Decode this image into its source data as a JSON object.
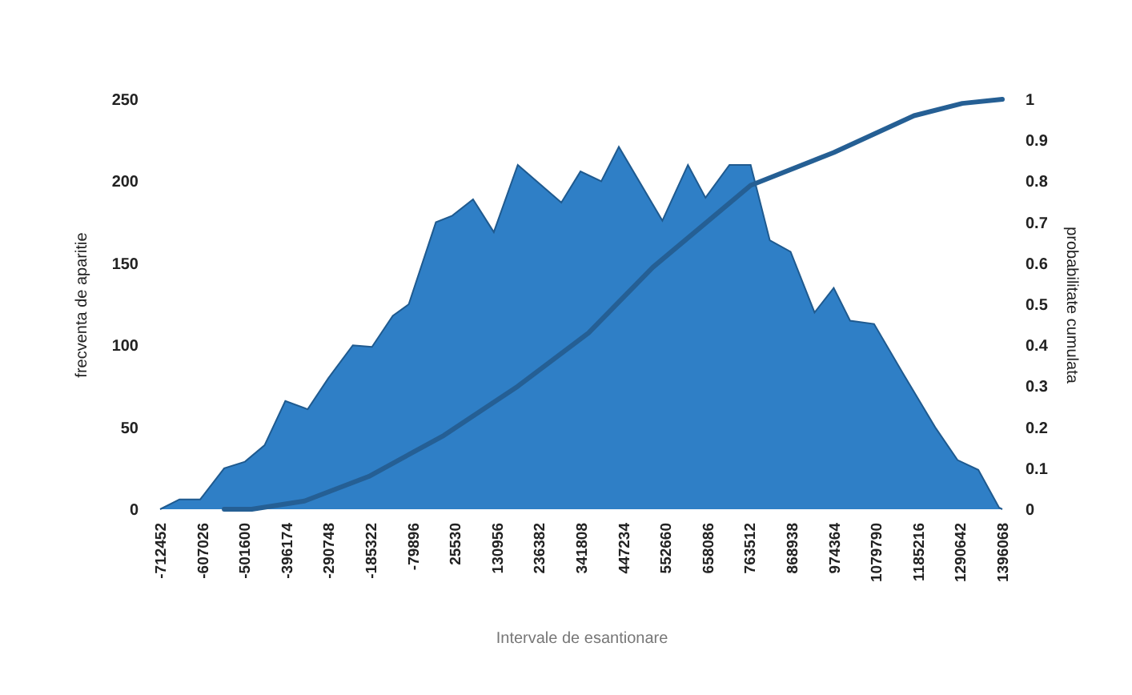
{
  "chart_data": {
    "type": "area",
    "xlabel": "Intervale de esantionare",
    "ylabel": "frecventa de aparitie",
    "y2label": "probabilitate cumulata",
    "xlim": [
      -712452,
      1396068
    ],
    "xticks": [
      -712452,
      -607026,
      -501600,
      -396174,
      -290748,
      -185322,
      -79896,
      25530,
      130956,
      236382,
      341808,
      447234,
      552660,
      658086,
      763512,
      868938,
      974364,
      1079790,
      1185216,
      1290642,
      1396068
    ],
    "ylim": [
      0,
      250
    ],
    "yticks": [
      0,
      50,
      100,
      150,
      200,
      250
    ],
    "y2lim": [
      0,
      1
    ],
    "y2ticks": [
      0,
      0.1,
      0.2,
      0.3,
      0.4,
      0.5,
      0.6,
      0.7,
      0.8,
      0.9,
      1
    ],
    "grid": false,
    "legend": false,
    "series": [
      {
        "color": "#2f7fc6",
        "x": [
          -712452,
          -664000,
          -612000,
          -552000,
          -500000,
          -451000,
          -399000,
          -343000,
          -291000,
          -230000,
          -182000,
          -130000,
          -90000,
          -22000,
          19000,
          71000,
          123000,
          183000,
          292000,
          340000,
          392000,
          436000,
          545000,
          609000,
          653000,
          713000,
          766000,
          814000,
          866000,
          926000,
          974000,
          1015000,
          1075000,
          1147000,
          1228000,
          1284000,
          1336000,
          1388000,
          1396068
        ],
        "values": [
          0,
          6,
          6,
          25,
          29,
          39,
          66,
          61,
          80,
          100,
          99,
          118,
          125,
          175,
          179,
          189,
          169,
          210,
          187,
          206,
          200,
          221,
          176,
          210,
          190,
          210,
          210,
          164,
          157,
          120,
          135,
          115,
          113,
          83,
          50,
          30,
          24,
          1,
          0
        ]
      },
      {
        "type": "line",
        "axis": "y2",
        "color": "#255f94",
        "x": [
          -552000,
          -483000,
          -351000,
          -190000,
          -2000,
          183000,
          360000,
          521000,
          766000,
          974000,
          1175000,
          1296000,
          1396068
        ],
        "values": [
          0,
          0,
          0.02,
          0.08,
          0.18,
          0.3,
          0.43,
          0.59,
          0.79,
          0.87,
          0.96,
          0.99,
          1
        ]
      }
    ]
  }
}
